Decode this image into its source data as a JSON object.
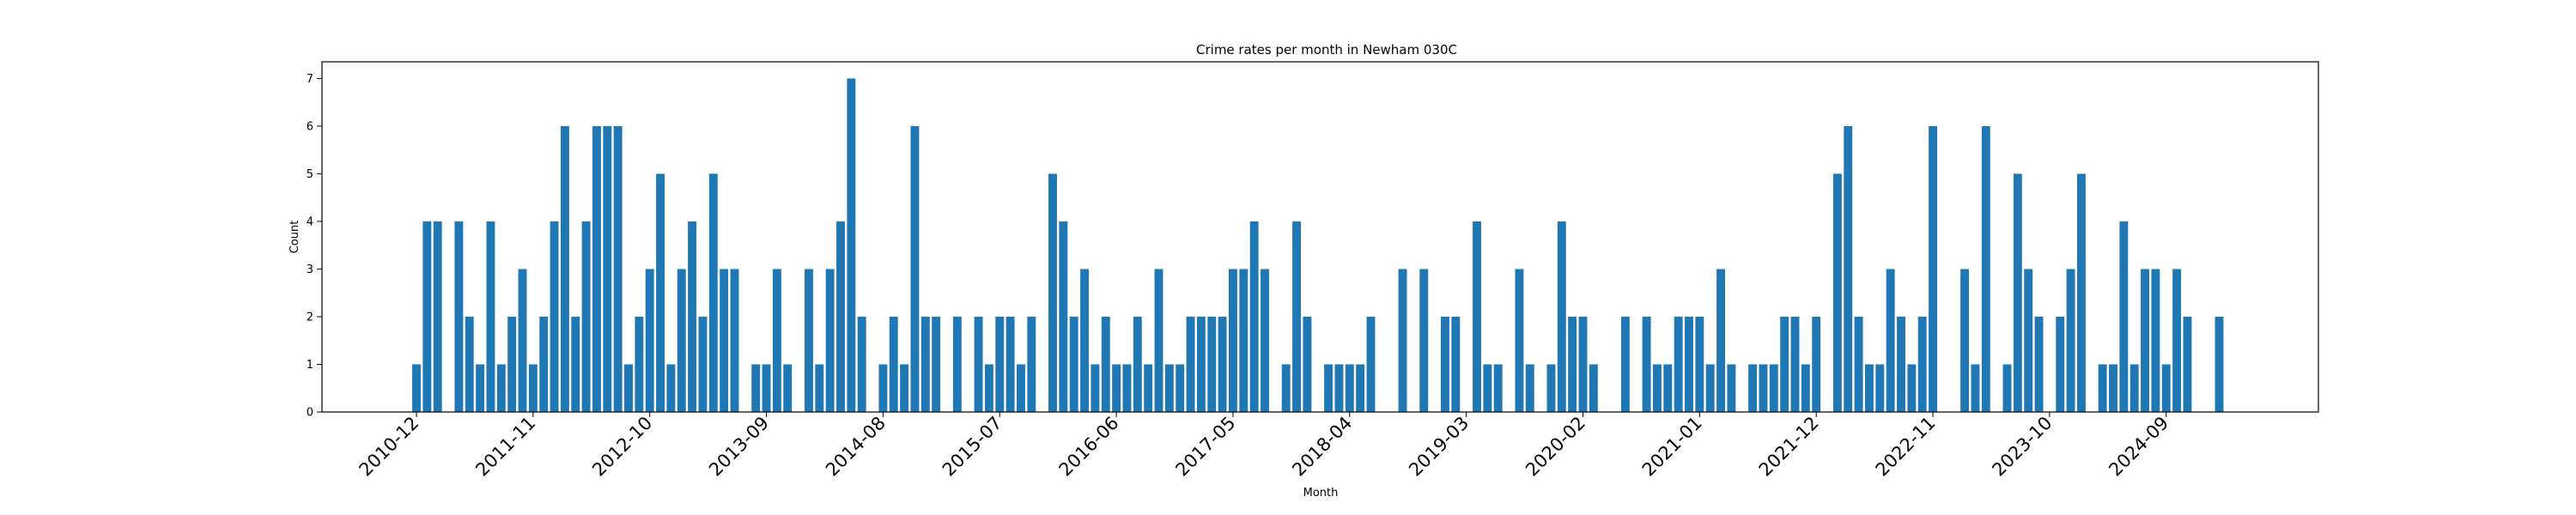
{
  "chart_data": {
    "type": "bar",
    "title": "Crime rates per month in Newham 030C",
    "xlabel": "Month",
    "ylabel": "Count",
    "ylim": [
      0,
      7.35
    ],
    "yticks": [
      0,
      1,
      2,
      3,
      4,
      5,
      6,
      7
    ],
    "bar_color": "#1f77b4",
    "grid": false,
    "x_start_month": "2010-12",
    "x_end_month": "2025-02",
    "xtick_labels": [
      "2010-12",
      "2011-11",
      "2012-10",
      "2013-09",
      "2014-08",
      "2015-07",
      "2016-06",
      "2017-05",
      "2018-04",
      "2019-03",
      "2020-02",
      "2021-01",
      "2021-12",
      "2022-11",
      "2023-10",
      "2024-09"
    ],
    "values": [
      1,
      4,
      4,
      0,
      4,
      2,
      1,
      4,
      1,
      2,
      3,
      1,
      2,
      4,
      6,
      2,
      4,
      6,
      6,
      6,
      1,
      2,
      3,
      5,
      1,
      3,
      4,
      2,
      5,
      3,
      3,
      0,
      1,
      1,
      3,
      1,
      0,
      3,
      1,
      3,
      4,
      7,
      2,
      0,
      1,
      2,
      1,
      6,
      2,
      2,
      0,
      2,
      0,
      2,
      1,
      2,
      2,
      1,
      2,
      0,
      5,
      4,
      2,
      3,
      1,
      2,
      1,
      1,
      2,
      1,
      3,
      1,
      1,
      2,
      2,
      2,
      2,
      3,
      3,
      4,
      3,
      0,
      1,
      4,
      2,
      0,
      1,
      1,
      1,
      1,
      2,
      0,
      0,
      3,
      0,
      3,
      0,
      2,
      2,
      0,
      4,
      1,
      1,
      0,
      3,
      1,
      0,
      1,
      4,
      2,
      2,
      1,
      0,
      0,
      2,
      0,
      2,
      1,
      1,
      2,
      2,
      2,
      1,
      3,
      1,
      0,
      1,
      1,
      1,
      2,
      2,
      1,
      2,
      0,
      5,
      6,
      2,
      1,
      1,
      3,
      2,
      1,
      2,
      6,
      0,
      0,
      3,
      1,
      6,
      0,
      1,
      5,
      3,
      2,
      0,
      2,
      3,
      5,
      0,
      1,
      1,
      4,
      1,
      3,
      3,
      1,
      3,
      2,
      0,
      0,
      2
    ]
  }
}
